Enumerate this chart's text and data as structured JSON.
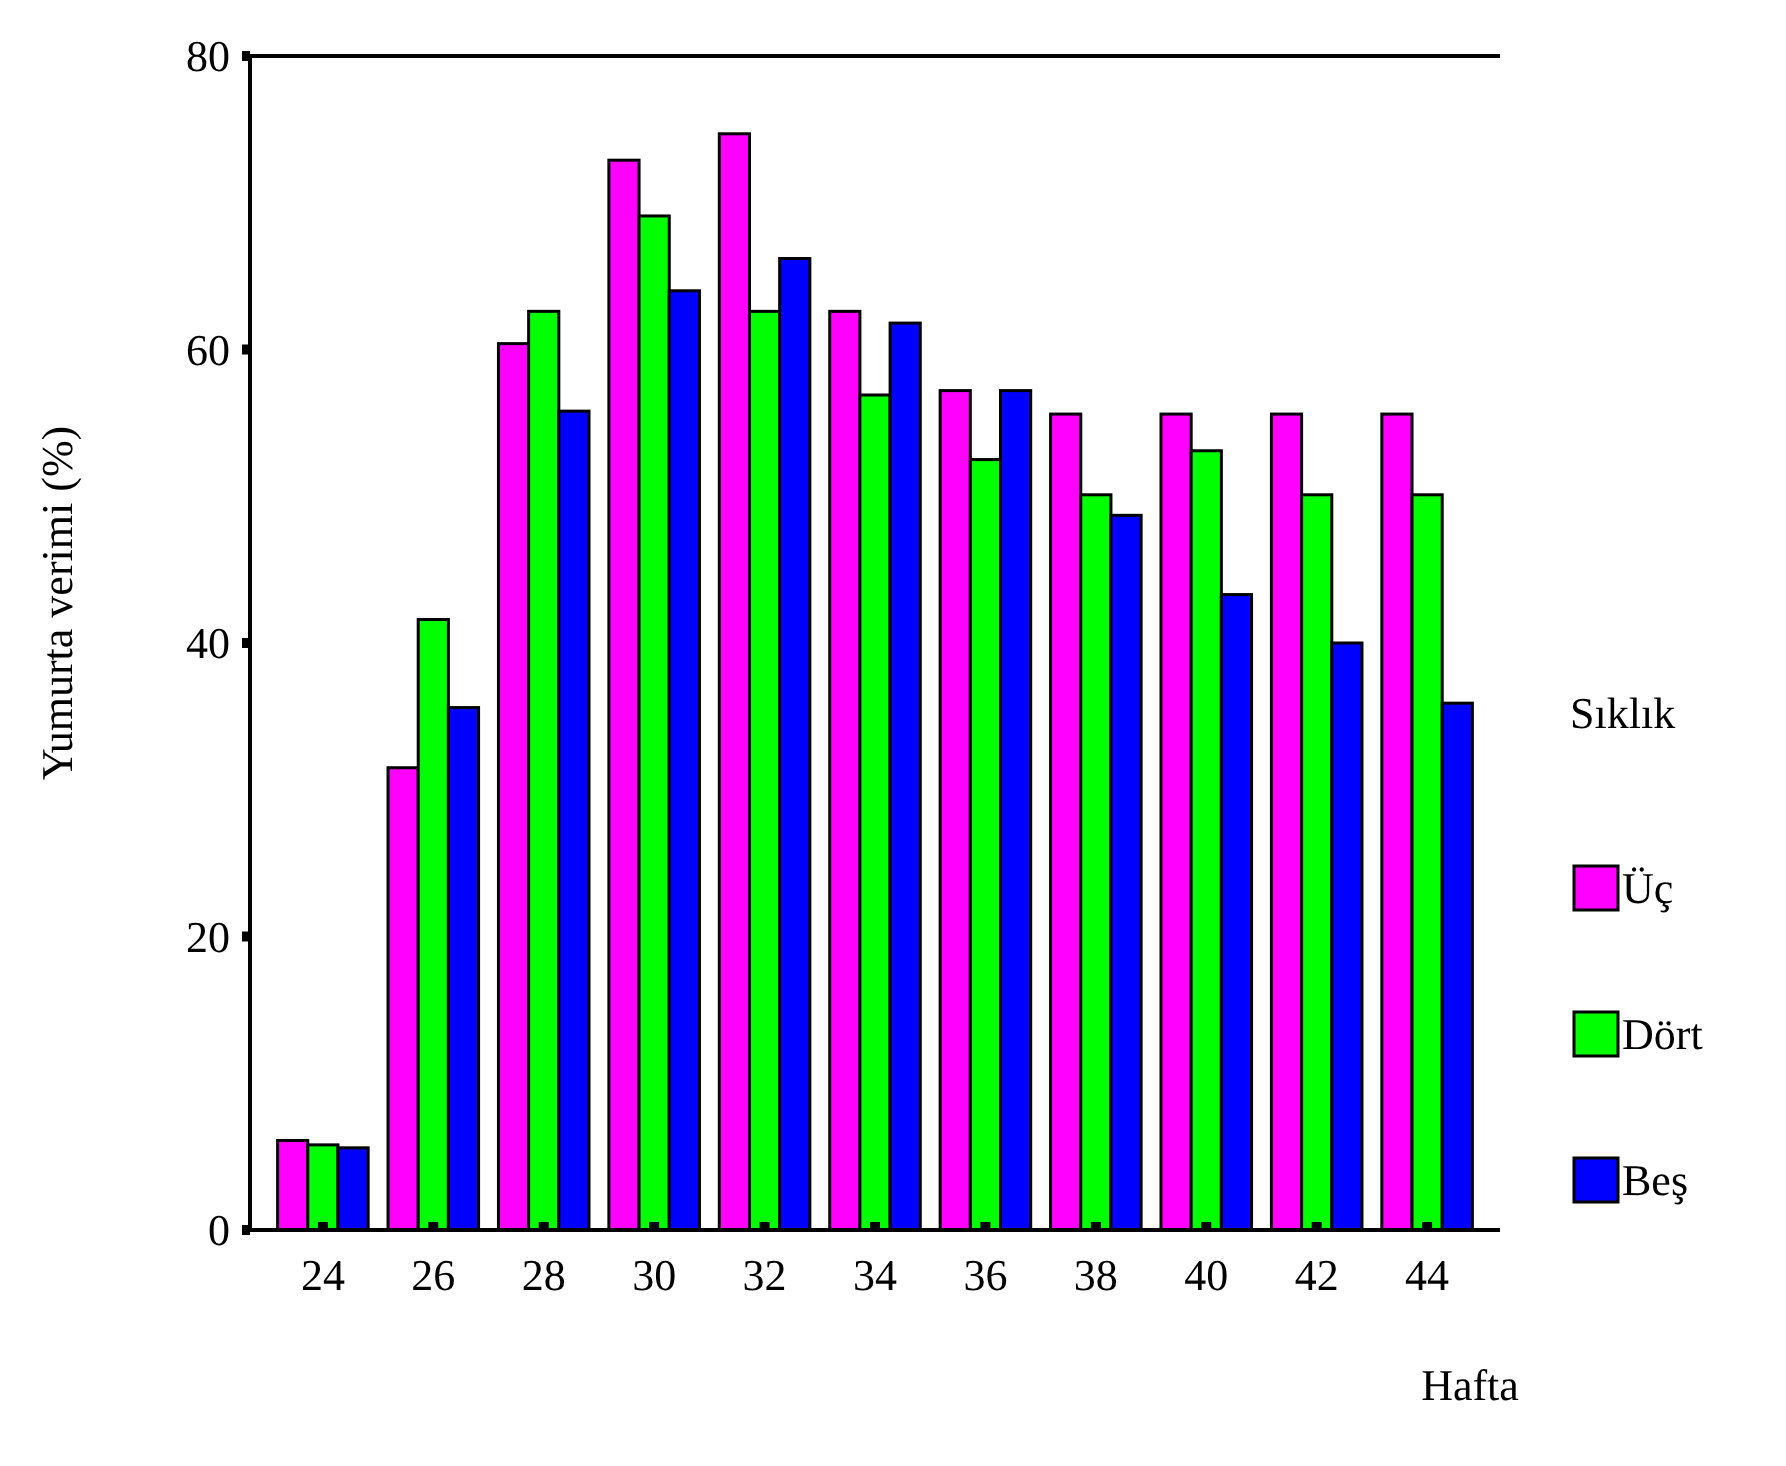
{
  "chart_data": {
    "type": "bar",
    "xlabel": "Hafta",
    "ylabel": "Yumurta verimi (%)",
    "legend_title": "Sıklık",
    "categories": [
      "24",
      "26",
      "28",
      "30",
      "32",
      "34",
      "36",
      "38",
      "40",
      "42",
      "44"
    ],
    "series": [
      {
        "name": "Üç",
        "color": "#ff00ff",
        "values": [
          6.1,
          31.5,
          60.4,
          72.9,
          74.7,
          62.6,
          57.2,
          55.6,
          55.6,
          55.6,
          55.6
        ]
      },
      {
        "name": "Dört",
        "color": "#00ff00",
        "values": [
          5.8,
          41.6,
          62.6,
          69.1,
          62.6,
          56.9,
          52.5,
          50.1,
          53.1,
          50.1,
          50.1
        ]
      },
      {
        "name": "Beş",
        "color": "#0000ff",
        "values": [
          5.6,
          35.6,
          55.8,
          64.0,
          66.2,
          61.8,
          57.2,
          48.7,
          43.3,
          40.0,
          35.9
        ]
      }
    ],
    "ylim": [
      0,
      80
    ],
    "yticks": [
      0,
      20,
      40,
      60,
      80
    ],
    "grid": false,
    "legend": "right"
  }
}
